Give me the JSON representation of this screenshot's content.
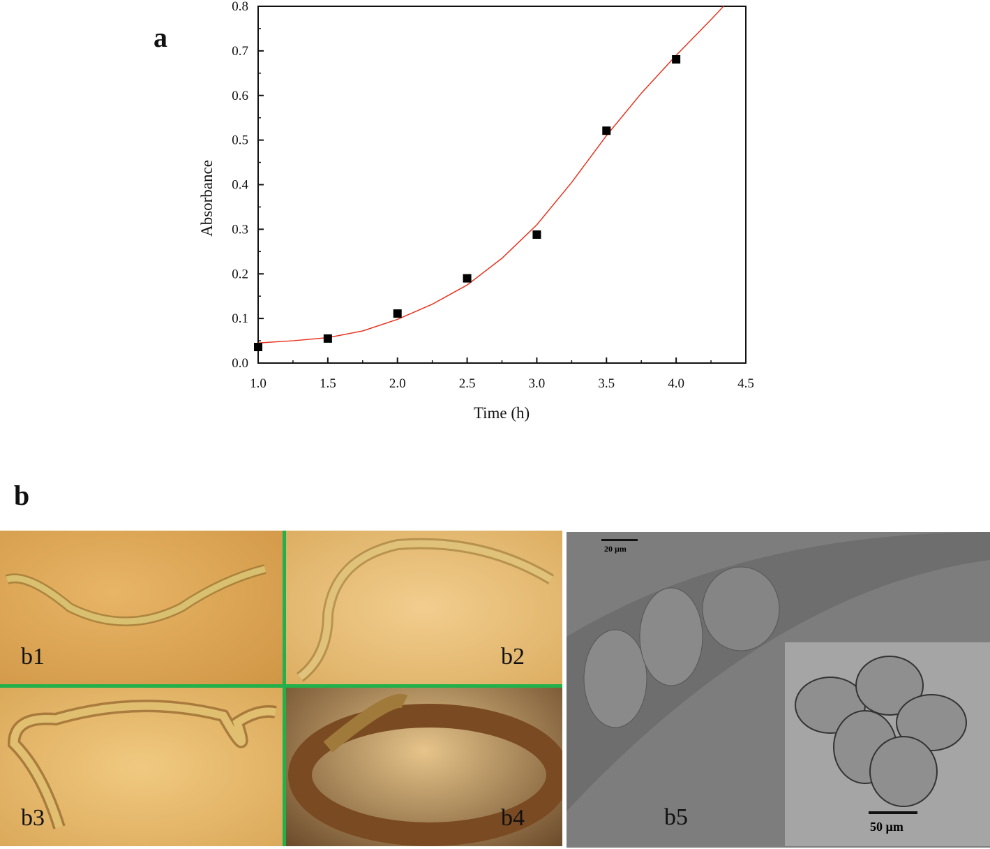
{
  "panel_a_label": "a",
  "panel_b_label": "b",
  "chart_data": {
    "type": "scatter",
    "title": "",
    "xlabel": "Time (h)",
    "ylabel": "Absorbance",
    "xlim": [
      1.0,
      4.5
    ],
    "ylim": [
      0.0,
      0.8
    ],
    "xticks": [
      "1.0",
      "1.5",
      "2.0",
      "2.5",
      "3.0",
      "3.5",
      "4.0",
      "4.5"
    ],
    "yticks": [
      "0.0",
      "0.1",
      "0.2",
      "0.3",
      "0.4",
      "0.5",
      "0.6",
      "0.7",
      "0.8"
    ],
    "grid": false,
    "series": [
      {
        "name": "measured",
        "marker": "square",
        "color": "#000000",
        "x": [
          1.0,
          1.5,
          2.0,
          2.5,
          3.0,
          3.5,
          4.0
        ],
        "y": [
          0.036,
          0.055,
          0.111,
          0.19,
          0.288,
          0.521,
          0.681
        ]
      },
      {
        "name": "fit",
        "style": "line",
        "color": "#e8321e",
        "x": [
          1.0,
          1.25,
          1.5,
          1.75,
          2.0,
          2.25,
          2.5,
          2.75,
          3.0,
          3.25,
          3.5,
          3.75,
          4.0,
          4.25,
          4.34
        ],
        "y": [
          0.045,
          0.05,
          0.057,
          0.072,
          0.098,
          0.132,
          0.175,
          0.235,
          0.31,
          0.405,
          0.51,
          0.605,
          0.69,
          0.77,
          0.8
        ]
      }
    ]
  },
  "images": {
    "b1": "b1",
    "b2": "b2",
    "b3": "b3",
    "b4": "b4",
    "b5": "b5",
    "scale_bar_20": "20 µm",
    "scale_bar_50": "50 µm"
  },
  "colors": {
    "separator": "#22b04a",
    "photo_bg": "#d9a456",
    "b5_bg": "#7b7b7b",
    "inset_bg": "#a3a3a3"
  }
}
